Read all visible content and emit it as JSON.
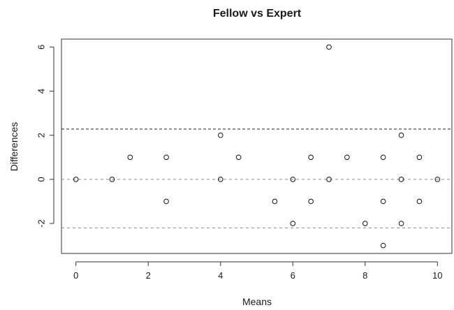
{
  "chart_data": {
    "type": "scatter",
    "title": "Fellow vs Expert",
    "xlabel": "Means",
    "ylabel": "Differences",
    "xlim": [
      -0.4,
      10.4
    ],
    "ylim": [
      -3.36,
      6.36
    ],
    "xticks": [
      0,
      2,
      4,
      6,
      8,
      10
    ],
    "yticks": [
      -2,
      0,
      2,
      4,
      6
    ],
    "grid": false,
    "marker": "open-circle",
    "reference_lines": [
      {
        "y": 2.28,
        "style": "dashed",
        "color": "#222222"
      },
      {
        "y": 0,
        "style": "dashed",
        "color": "#888888"
      },
      {
        "y": -2.2,
        "style": "dashed",
        "color": "#888888"
      }
    ],
    "points": [
      {
        "x": 0,
        "y": 0
      },
      {
        "x": 1,
        "y": 0
      },
      {
        "x": 1.5,
        "y": 1
      },
      {
        "x": 2.5,
        "y": 1
      },
      {
        "x": 2.5,
        "y": -1
      },
      {
        "x": 4,
        "y": 2
      },
      {
        "x": 4,
        "y": 0
      },
      {
        "x": 4.5,
        "y": 1
      },
      {
        "x": 5.5,
        "y": -1
      },
      {
        "x": 6,
        "y": 0
      },
      {
        "x": 6,
        "y": -2
      },
      {
        "x": 6.5,
        "y": 1
      },
      {
        "x": 6.5,
        "y": -1
      },
      {
        "x": 7,
        "y": 6
      },
      {
        "x": 7,
        "y": 0
      },
      {
        "x": 7.5,
        "y": 1
      },
      {
        "x": 8,
        "y": -2
      },
      {
        "x": 8.5,
        "y": 1
      },
      {
        "x": 8.5,
        "y": -1
      },
      {
        "x": 8.5,
        "y": -3
      },
      {
        "x": 9,
        "y": 2
      },
      {
        "x": 9,
        "y": 0
      },
      {
        "x": 9,
        "y": -2
      },
      {
        "x": 9.5,
        "y": 1
      },
      {
        "x": 9.5,
        "y": -1
      },
      {
        "x": 10,
        "y": 0
      }
    ]
  }
}
